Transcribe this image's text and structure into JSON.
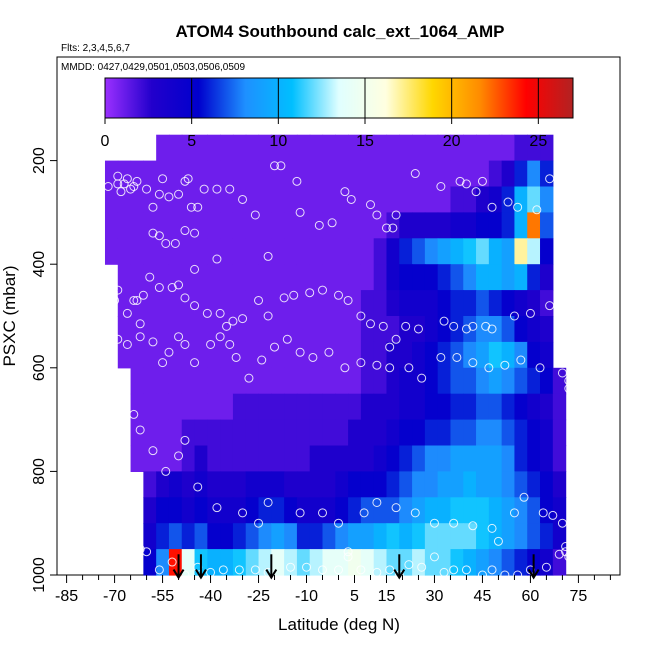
{
  "chart_data": {
    "type": "heatmap",
    "title": "ATOM4 Southbound calc_ext_1064_AMP",
    "flights_note": "Flts: 2,3,4,5,6,7",
    "dates_note": "MMDD: 0427,0429,0501,0503,0506,0509",
    "xlabel": "Latitude (deg N)",
    "ylabel": "PSXC (mbar)",
    "xlim": [
      -88,
      88
    ],
    "ylim": [
      1000,
      0
    ],
    "x_ticks": [
      -85,
      -70,
      -55,
      -40,
      -25,
      -10,
      5,
      15,
      30,
      45,
      60,
      75
    ],
    "x_minor_ticks": [
      -80,
      -75,
      -65,
      -60,
      -50,
      -45,
      -35,
      -30,
      -20,
      -15,
      -5,
      0,
      10,
      20,
      25,
      35,
      40,
      50,
      55,
      65,
      70,
      80,
      85
    ],
    "y_ticks": [
      200,
      400,
      600,
      800,
      1000
    ],
    "colorbar": {
      "range": [
        0,
        27
      ],
      "ticks": [
        0,
        5,
        10,
        15,
        20,
        25
      ],
      "colors": [
        "#9b30ff",
        "#2200cc",
        "#0000cd",
        "#1e90ff",
        "#00bfff",
        "#e0ffff",
        "#ffffe0",
        "#ffd700",
        "#ff8c00",
        "#ff0000",
        "#b22222"
      ]
    },
    "field": {
      "x": [
        -71,
        -67,
        -63,
        -59,
        -55,
        -51,
        -47,
        -43,
        -39,
        -35,
        -31,
        -27,
        -23,
        -19,
        -15,
        -11,
        -7,
        -3,
        1,
        5,
        9,
        13,
        17,
        21,
        25,
        29,
        33,
        37,
        41,
        45,
        49,
        53,
        57,
        61,
        65,
        69
      ],
      "y": [
        175,
        225,
        275,
        325,
        375,
        425,
        475,
        525,
        575,
        625,
        675,
        725,
        775,
        825,
        875,
        925,
        975
      ],
      "values": [
        [
          null,
          null,
          null,
          null,
          1,
          1,
          1,
          1,
          1,
          1,
          1,
          1,
          1,
          1,
          1,
          1,
          1,
          1,
          1,
          1,
          1,
          1,
          1,
          1,
          1,
          1,
          1,
          1,
          1,
          1,
          1,
          1,
          2,
          2,
          2,
          null
        ],
        [
          1,
          1,
          1,
          1,
          1,
          1,
          1,
          1,
          1,
          1,
          1,
          1,
          1,
          1,
          1,
          1,
          1,
          1,
          1,
          1,
          1,
          1,
          1,
          1,
          1,
          1,
          1,
          1,
          1,
          1,
          2,
          3,
          6,
          8,
          6,
          null
        ],
        [
          1,
          1,
          1,
          1,
          1,
          1,
          1,
          1,
          1,
          1,
          1,
          1,
          1,
          1,
          1,
          1,
          1,
          1,
          1,
          1,
          1,
          1,
          1,
          1,
          1,
          1,
          1,
          2,
          2,
          3,
          4,
          6,
          10,
          12,
          8,
          null
        ],
        [
          1,
          1,
          1,
          1,
          1,
          1,
          1,
          1,
          1,
          1,
          1,
          1,
          1,
          1,
          1,
          1,
          1,
          1,
          1,
          1,
          1,
          1,
          2,
          3,
          3,
          3,
          3,
          4,
          4,
          5,
          5,
          6,
          10,
          22,
          7,
          null
        ],
        [
          1,
          1,
          1,
          1,
          1,
          1,
          1,
          1,
          1,
          1,
          1,
          1,
          1,
          1,
          1,
          1,
          1,
          1,
          1,
          1,
          1,
          2,
          4,
          6,
          7,
          8,
          9,
          10,
          11,
          12,
          10,
          9,
          17,
          13,
          5,
          null
        ],
        [
          null,
          1,
          1,
          1,
          1,
          1,
          1,
          1,
          1,
          1,
          1,
          1,
          1,
          1,
          1,
          1,
          1,
          1,
          1,
          1,
          1,
          2,
          4,
          5,
          5,
          5,
          6,
          7,
          8,
          10,
          10,
          9,
          10,
          6,
          3,
          null
        ],
        [
          null,
          1,
          1,
          1,
          1,
          1,
          1,
          1,
          1,
          1,
          1,
          1,
          1,
          1,
          1,
          1,
          1,
          1,
          1,
          1,
          2,
          2,
          3,
          4,
          4,
          4,
          5,
          6,
          6,
          7,
          6,
          5,
          4,
          3,
          2,
          null
        ],
        [
          null,
          1,
          1,
          1,
          1,
          1,
          1,
          1,
          1,
          1,
          1,
          1,
          1,
          1,
          1,
          1,
          1,
          1,
          1,
          1,
          2,
          2,
          2,
          3,
          3,
          4,
          5,
          6,
          7,
          8,
          8,
          7,
          5,
          4,
          3,
          null
        ],
        [
          null,
          1,
          1,
          1,
          1,
          1,
          1,
          1,
          1,
          1,
          1,
          1,
          1,
          1,
          1,
          1,
          1,
          1,
          1,
          1,
          2,
          2,
          3,
          3,
          4,
          5,
          6,
          7,
          8,
          9,
          11,
          10,
          8,
          5,
          4,
          null
        ],
        [
          null,
          null,
          1,
          1,
          1,
          1,
          1,
          1,
          1,
          1,
          1,
          1,
          1,
          1,
          1,
          1,
          1,
          1,
          1,
          1,
          2,
          2,
          3,
          4,
          4,
          5,
          6,
          7,
          7,
          8,
          9,
          8,
          7,
          6,
          5,
          2
        ],
        [
          null,
          null,
          1,
          1,
          1,
          1,
          1,
          1,
          1,
          1,
          2,
          2,
          2,
          2,
          2,
          2,
          2,
          2,
          2,
          2,
          3,
          3,
          3,
          4,
          4,
          5,
          5,
          6,
          6,
          7,
          7,
          6,
          5,
          4,
          3,
          2
        ],
        [
          null,
          null,
          1,
          1,
          1,
          1,
          2,
          2,
          2,
          2,
          2,
          2,
          2,
          2,
          2,
          2,
          2,
          2,
          2,
          3,
          3,
          3,
          4,
          5,
          5,
          6,
          6,
          7,
          7,
          8,
          8,
          7,
          6,
          5,
          4,
          2
        ],
        [
          null,
          null,
          1,
          1,
          1,
          1,
          2,
          3,
          2,
          2,
          2,
          2,
          2,
          2,
          2,
          2,
          3,
          3,
          3,
          3,
          3,
          4,
          5,
          6,
          7,
          8,
          8,
          9,
          9,
          9,
          9,
          8,
          6,
          5,
          4,
          2
        ],
        [
          null,
          null,
          null,
          2,
          3,
          4,
          3,
          4,
          3,
          3,
          3,
          4,
          4,
          4,
          3,
          3,
          3,
          3,
          4,
          5,
          5,
          5,
          6,
          7,
          8,
          8,
          9,
          9,
          10,
          9,
          9,
          8,
          7,
          6,
          5,
          3
        ],
        [
          null,
          null,
          null,
          3,
          5,
          5,
          4,
          5,
          4,
          4,
          4,
          5,
          6,
          6,
          5,
          4,
          4,
          4,
          5,
          6,
          7,
          7,
          7,
          8,
          9,
          10,
          10,
          11,
          11,
          11,
          10,
          9,
          8,
          7,
          5,
          4
        ],
        [
          null,
          null,
          null,
          4,
          6,
          7,
          6,
          7,
          5,
          5,
          6,
          7,
          8,
          9,
          8,
          6,
          6,
          7,
          8,
          9,
          9,
          10,
          11,
          10,
          11,
          12,
          12,
          12,
          12,
          11,
          10,
          9,
          8,
          7,
          6,
          4
        ],
        [
          null,
          null,
          null,
          5,
          8,
          24,
          14,
          11,
          10,
          10,
          11,
          12,
          13,
          14,
          13,
          12,
          13,
          14,
          14,
          15,
          14,
          13,
          12,
          12,
          13,
          12,
          12,
          11,
          10,
          9,
          8,
          7,
          6,
          5,
          4,
          2
        ]
      ]
    },
    "sample_points": [
      [
        -85,
        240
      ],
      [
        -80,
        240
      ],
      [
        -72,
        250
      ],
      [
        -69,
        230
      ],
      [
        -69,
        245
      ],
      [
        -68,
        260
      ],
      [
        -67,
        245
      ],
      [
        -66,
        235
      ],
      [
        -65,
        255
      ],
      [
        -64,
        250
      ],
      [
        -63,
        240
      ],
      [
        -60,
        255
      ],
      [
        -58,
        290
      ],
      [
        -56,
        265
      ],
      [
        -55,
        235
      ],
      [
        -53,
        270
      ],
      [
        -50,
        265
      ],
      [
        -48,
        240
      ],
      [
        -47,
        235
      ],
      [
        -46,
        290
      ],
      [
        -44,
        290
      ],
      [
        -42,
        255
      ],
      [
        -38,
        255
      ],
      [
        -34,
        255
      ],
      [
        -30,
        275
      ],
      [
        -26,
        305
      ],
      [
        -58,
        340
      ],
      [
        -56,
        345
      ],
      [
        -54,
        360
      ],
      [
        -51,
        360
      ],
      [
        -48,
        335
      ],
      [
        -45,
        340
      ],
      [
        -45,
        410
      ],
      [
        -38,
        390
      ],
      [
        -22,
        385
      ],
      [
        -20,
        210
      ],
      [
        -18,
        210
      ],
      [
        -13,
        240
      ],
      [
        -12,
        300
      ],
      [
        -6,
        325
      ],
      [
        -2,
        320
      ],
      [
        2,
        260
      ],
      [
        4,
        275
      ],
      [
        10,
        285
      ],
      [
        12,
        305
      ],
      [
        15,
        330
      ],
      [
        17,
        330
      ],
      [
        18,
        305
      ],
      [
        24,
        225
      ],
      [
        32,
        250
      ],
      [
        38,
        240
      ],
      [
        40,
        245
      ],
      [
        43,
        260
      ],
      [
        45,
        240
      ],
      [
        48,
        290
      ],
      [
        53,
        280
      ],
      [
        56,
        290
      ],
      [
        62,
        295
      ],
      [
        66,
        235
      ],
      [
        70,
        240
      ],
      [
        -79,
        460
      ],
      [
        -76,
        470
      ],
      [
        -73,
        485
      ],
      [
        -70,
        470
      ],
      [
        -69,
        450
      ],
      [
        -66,
        495
      ],
      [
        -64,
        470
      ],
      [
        -63,
        470
      ],
      [
        -62,
        515
      ],
      [
        -61,
        460
      ],
      [
        -59,
        425
      ],
      [
        -56,
        445
      ],
      [
        -52,
        445
      ],
      [
        -50,
        440
      ],
      [
        -48,
        465
      ],
      [
        -45,
        480
      ],
      [
        -41,
        495
      ],
      [
        -37,
        495
      ],
      [
        -35,
        520
      ],
      [
        -33,
        510
      ],
      [
        -30,
        505
      ],
      [
        -25,
        470
      ],
      [
        -22,
        500
      ],
      [
        -17,
        465
      ],
      [
        -14,
        460
      ],
      [
        -9,
        455
      ],
      [
        -5,
        450
      ],
      [
        0,
        460
      ],
      [
        3,
        470
      ],
      [
        7,
        500
      ],
      [
        10,
        515
      ],
      [
        14,
        520
      ],
      [
        16,
        560
      ],
      [
        18,
        545
      ],
      [
        21,
        520
      ],
      [
        25,
        525
      ],
      [
        33,
        510
      ],
      [
        36,
        520
      ],
      [
        40,
        525
      ],
      [
        42,
        520
      ],
      [
        46,
        520
      ],
      [
        48,
        525
      ],
      [
        55,
        500
      ],
      [
        60,
        495
      ],
      [
        66,
        480
      ],
      [
        70,
        455
      ],
      [
        -84,
        530
      ],
      [
        -78,
        510
      ],
      [
        -73,
        540
      ],
      [
        -69,
        545
      ],
      [
        -66,
        555
      ],
      [
        -62,
        540
      ],
      [
        -58,
        550
      ],
      [
        -55,
        590
      ],
      [
        -53,
        570
      ],
      [
        -50,
        540
      ],
      [
        -48,
        555
      ],
      [
        -45,
        590
      ],
      [
        -40,
        555
      ],
      [
        -37,
        540
      ],
      [
        -34,
        555
      ],
      [
        -32,
        580
      ],
      [
        -28,
        620
      ],
      [
        -24,
        585
      ],
      [
        -20,
        560
      ],
      [
        -16,
        545
      ],
      [
        -12,
        570
      ],
      [
        -8,
        580
      ],
      [
        -3,
        570
      ],
      [
        2,
        600
      ],
      [
        7,
        590
      ],
      [
        12,
        595
      ],
      [
        16,
        600
      ],
      [
        22,
        600
      ],
      [
        26,
        620
      ],
      [
        32,
        580
      ],
      [
        37,
        580
      ],
      [
        42,
        590
      ],
      [
        47,
        600
      ],
      [
        52,
        595
      ],
      [
        57,
        585
      ],
      [
        63,
        600
      ],
      [
        70,
        610
      ],
      [
        72,
        625
      ],
      [
        72,
        640
      ],
      [
        -77,
        660
      ],
      [
        -73,
        680
      ],
      [
        -68,
        700
      ],
      [
        -64,
        690
      ],
      [
        -62,
        720
      ],
      [
        -58,
        760
      ],
      [
        -54,
        800
      ],
      [
        -50,
        770
      ],
      [
        -48,
        740
      ],
      [
        -44,
        830
      ],
      [
        -38,
        870
      ],
      [
        -30,
        880
      ],
      [
        -25,
        900
      ],
      [
        -22,
        860
      ],
      [
        -12,
        880
      ],
      [
        -5,
        880
      ],
      [
        0,
        900
      ],
      [
        8,
        880
      ],
      [
        12,
        860
      ],
      [
        18,
        870
      ],
      [
        24,
        880
      ],
      [
        30,
        900
      ],
      [
        36,
        900
      ],
      [
        42,
        905
      ],
      [
        48,
        910
      ],
      [
        50,
        935
      ],
      [
        55,
        880
      ],
      [
        58,
        850
      ],
      [
        64,
        880
      ],
      [
        67,
        885
      ],
      [
        70,
        900
      ],
      [
        73,
        905
      ],
      [
        -75,
        960
      ],
      [
        -68,
        955
      ],
      [
        -66,
        975
      ],
      [
        -63,
        960
      ],
      [
        -62,
        950
      ],
      [
        -60,
        955
      ],
      [
        -56,
        990
      ],
      [
        -52,
        975
      ],
      [
        -48,
        1000
      ],
      [
        -44,
        985
      ],
      [
        -40,
        995
      ],
      [
        -36,
        990
      ],
      [
        -31,
        990
      ],
      [
        -26,
        990
      ],
      [
        -22,
        995
      ],
      [
        -15,
        985
      ],
      [
        -10,
        985
      ],
      [
        -5,
        990
      ],
      [
        0,
        990
      ],
      [
        3,
        955
      ],
      [
        3,
        965
      ],
      [
        7,
        990
      ],
      [
        12,
        995
      ],
      [
        16,
        990
      ],
      [
        19,
        1000
      ],
      [
        22,
        980
      ],
      [
        26,
        985
      ],
      [
        30,
        965
      ],
      [
        33,
        995
      ],
      [
        36,
        990
      ],
      [
        40,
        990
      ],
      [
        45,
        1000
      ],
      [
        48,
        990
      ],
      [
        52,
        1000
      ],
      [
        56,
        1000
      ],
      [
        60,
        990
      ],
      [
        65,
        985
      ],
      [
        69,
        960
      ],
      [
        71,
        945
      ],
      [
        71,
        955
      ],
      [
        72,
        965
      ],
      [
        -78,
        960
      ],
      [
        -74,
        950
      ],
      [
        -71,
        945
      ]
    ],
    "arrow_latitudes": [
      -50,
      -43,
      -21,
      19,
      61
    ],
    "series": []
  }
}
